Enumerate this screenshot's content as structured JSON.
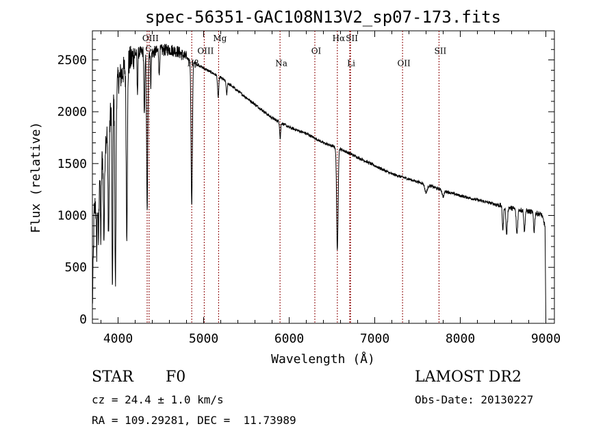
{
  "chart_data": {
    "type": "line",
    "title": "spec-56351-GAC108N13V2_sp07-173.fits",
    "xlabel": "Wavelength (Å)",
    "ylabel": "Flux (relative)",
    "xlim": [
      3700,
      9100
    ],
    "ylim": [
      -40,
      2780
    ],
    "xticks": [
      4000,
      5000,
      6000,
      7000,
      8000,
      9000
    ],
    "yticks": [
      0,
      500,
      1000,
      1500,
      2000,
      2500
    ],
    "grid": false,
    "line_color": "#000000",
    "marker_color": "#8b0000",
    "continuum": [
      {
        "x": 3700,
        "y": 100
      },
      {
        "x": 3720,
        "y": 1000
      },
      {
        "x": 3760,
        "y": 1350
      },
      {
        "x": 3800,
        "y": 1500
      },
      {
        "x": 3850,
        "y": 1700
      },
      {
        "x": 3900,
        "y": 1950
      },
      {
        "x": 4000,
        "y": 2300
      },
      {
        "x": 4100,
        "y": 2450
      },
      {
        "x": 4200,
        "y": 2560
      },
      {
        "x": 4300,
        "y": 2580
      },
      {
        "x": 4400,
        "y": 2570
      },
      {
        "x": 4500,
        "y": 2590
      },
      {
        "x": 4600,
        "y": 2600
      },
      {
        "x": 4700,
        "y": 2580
      },
      {
        "x": 4800,
        "y": 2520
      },
      {
        "x": 4900,
        "y": 2470
      },
      {
        "x": 5000,
        "y": 2420
      },
      {
        "x": 5200,
        "y": 2330
      },
      {
        "x": 5400,
        "y": 2200
      },
      {
        "x": 5600,
        "y": 2070
      },
      {
        "x": 5800,
        "y": 1940
      },
      {
        "x": 6000,
        "y": 1850
      },
      {
        "x": 6200,
        "y": 1790
      },
      {
        "x": 6400,
        "y": 1700
      },
      {
        "x": 6600,
        "y": 1640
      },
      {
        "x": 6800,
        "y": 1560
      },
      {
        "x": 7000,
        "y": 1480
      },
      {
        "x": 7200,
        "y": 1400
      },
      {
        "x": 7400,
        "y": 1350
      },
      {
        "x": 7600,
        "y": 1300
      },
      {
        "x": 7800,
        "y": 1240
      },
      {
        "x": 8000,
        "y": 1190
      },
      {
        "x": 8200,
        "y": 1150
      },
      {
        "x": 8400,
        "y": 1110
      },
      {
        "x": 8600,
        "y": 1070
      },
      {
        "x": 8800,
        "y": 1040
      },
      {
        "x": 8950,
        "y": 1010
      },
      {
        "x": 8990,
        "y": 900
      },
      {
        "x": 9000,
        "y": 0
      }
    ],
    "absorption_lines": [
      {
        "x": 3750,
        "depth": 600,
        "width": 8
      },
      {
        "x": 3770,
        "depth": 650,
        "width": 8
      },
      {
        "x": 3798,
        "depth": 700,
        "width": 8
      },
      {
        "x": 3835,
        "depth": 850,
        "width": 9
      },
      {
        "x": 3889,
        "depth": 1050,
        "width": 10
      },
      {
        "x": 3934,
        "depth": 1900,
        "width": 7
      },
      {
        "x": 3969,
        "depth": 1850,
        "width": 9
      },
      {
        "x": 4102,
        "depth": 1600,
        "width": 10
      },
      {
        "x": 4226,
        "depth": 400,
        "width": 6
      },
      {
        "x": 4307,
        "depth": 650,
        "width": 7
      },
      {
        "x": 4340,
        "depth": 1550,
        "width": 10
      },
      {
        "x": 4383,
        "depth": 300,
        "width": 6
      },
      {
        "x": 4481,
        "depth": 250,
        "width": 6
      },
      {
        "x": 4861,
        "depth": 1400,
        "width": 11
      },
      {
        "x": 5170,
        "depth": 200,
        "width": 10
      },
      {
        "x": 5270,
        "depth": 120,
        "width": 8
      },
      {
        "x": 5895,
        "depth": 160,
        "width": 8
      },
      {
        "x": 6563,
        "depth": 1000,
        "width": 12
      },
      {
        "x": 7600,
        "depth": 80,
        "width": 20
      },
      {
        "x": 7800,
        "depth": 60,
        "width": 15
      },
      {
        "x": 8498,
        "depth": 230,
        "width": 10
      },
      {
        "x": 8542,
        "depth": 260,
        "width": 12
      },
      {
        "x": 8662,
        "depth": 240,
        "width": 12
      },
      {
        "x": 8750,
        "depth": 200,
        "width": 10
      },
      {
        "x": 8863,
        "depth": 180,
        "width": 10
      }
    ],
    "line_markers": [
      {
        "x": 4340,
        "label": "G",
        "label_y": 2580
      },
      {
        "x": 4363,
        "label": "OIII",
        "label_y": 2680
      },
      {
        "x": 4861,
        "label": "Hβ",
        "label_y": 2440
      },
      {
        "x": 5007,
        "label": "OIII",
        "label_y": 2560
      },
      {
        "x": 5175,
        "label": "Mg",
        "label_y": 2680
      },
      {
        "x": 5893,
        "label": "Na",
        "label_y": 2440
      },
      {
        "x": 6300,
        "label": "OI",
        "label_y": 2560
      },
      {
        "x": 6563,
        "label": "Hα",
        "label_y": 2680
      },
      {
        "x": 6717,
        "label": "SII",
        "label_y": 2680
      },
      {
        "x": 6708,
        "label": "Li",
        "label_y": 2440
      },
      {
        "x": 7325,
        "label": "OII",
        "label_y": 2440
      },
      {
        "x": 7751,
        "label": "SII",
        "label_y": 2560
      }
    ]
  },
  "info": {
    "object_class": "STAR",
    "subclass": "F0",
    "survey": "LAMOST DR2",
    "redshift": "cz = 24.4 ± 1.0 km/s",
    "obs_date": "Obs-Date: 20130227",
    "coords": "RA = 109.29281, DEC =  11.73989"
  }
}
